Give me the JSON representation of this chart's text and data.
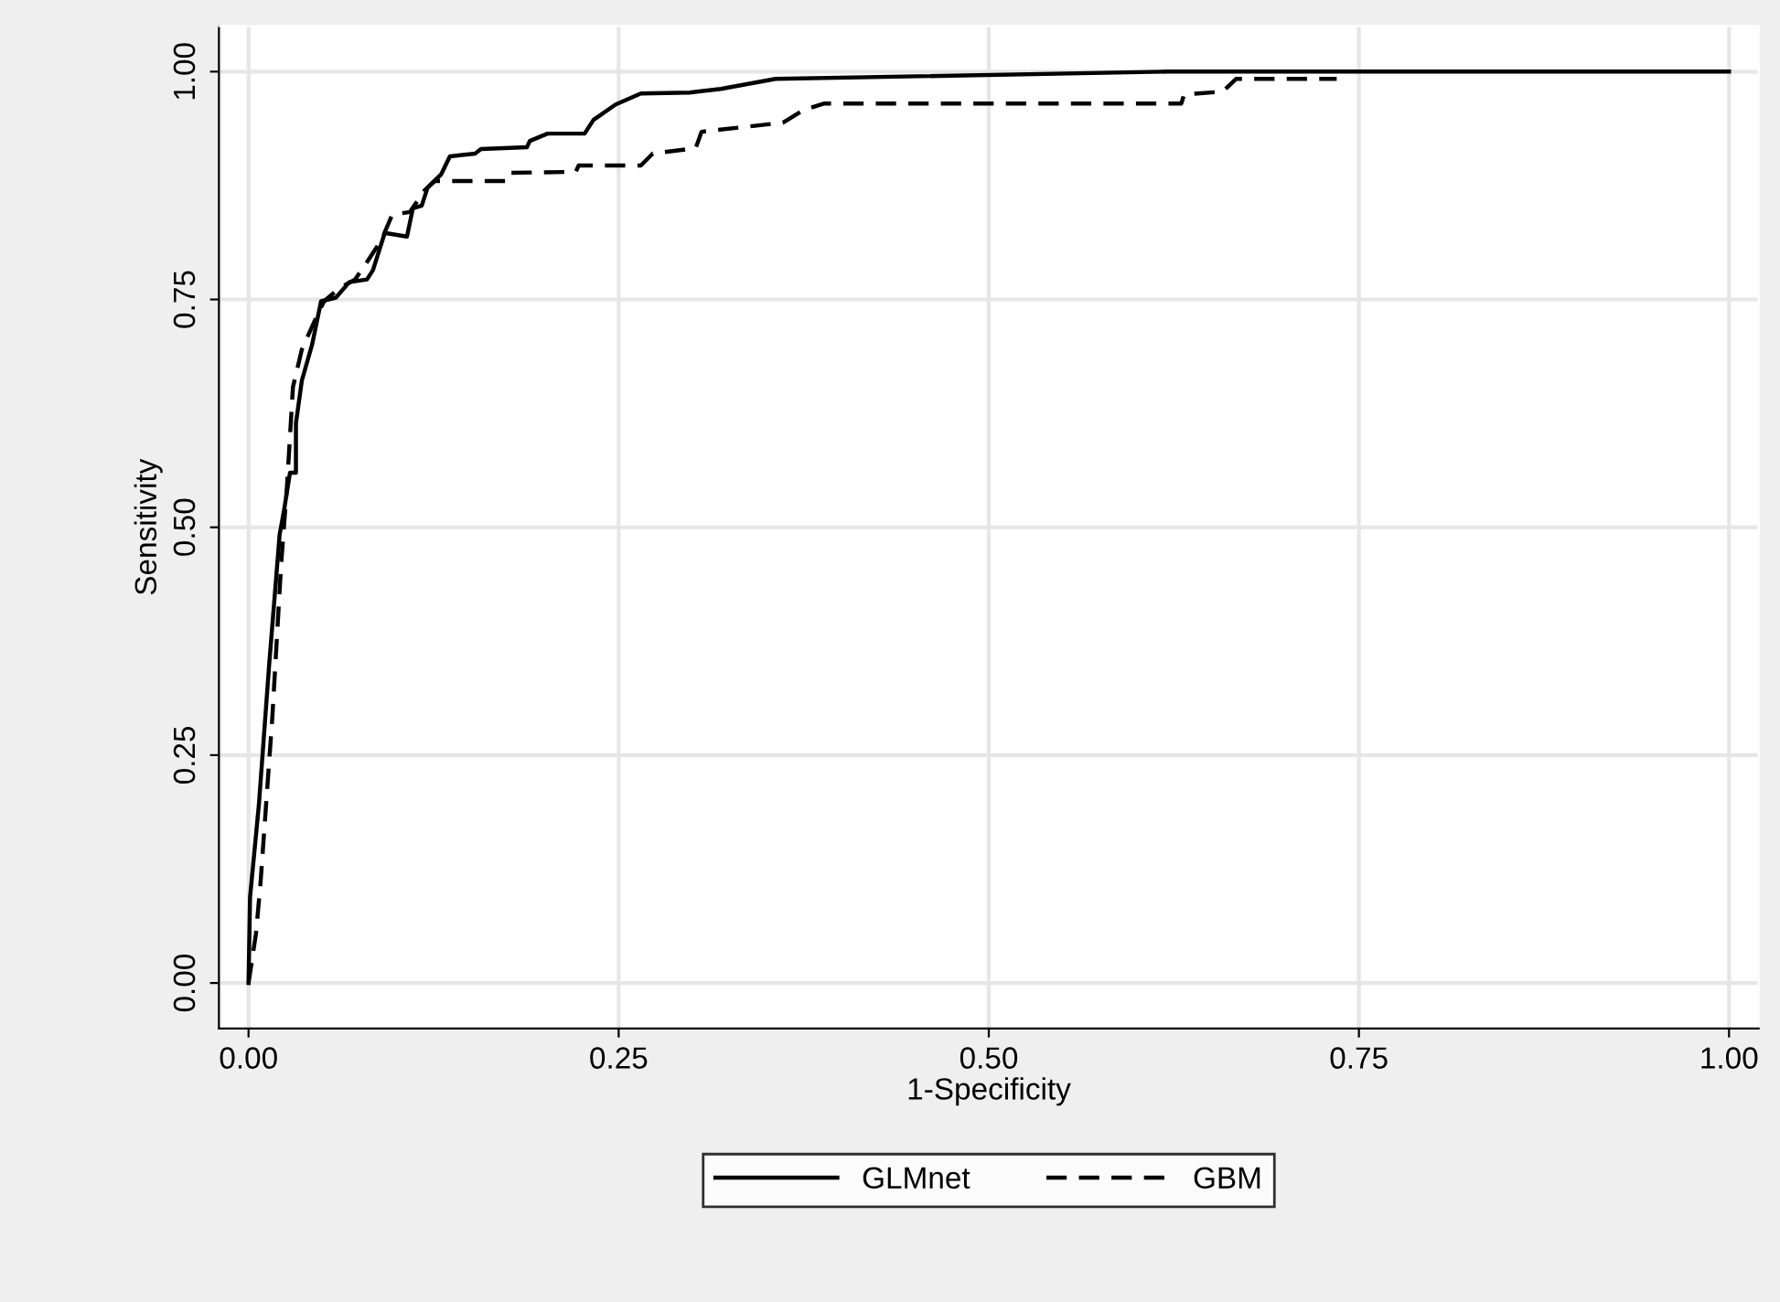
{
  "chart_data": {
    "type": "line",
    "xlabel": "1-Specificity",
    "ylabel": "Sensitivity",
    "xlim": [
      -0.02,
      1.02
    ],
    "ylim": [
      -0.05,
      1.05
    ],
    "xticks": [
      {
        "value": 0,
        "label": "0.00"
      },
      {
        "value": 0.25,
        "label": "0.25"
      },
      {
        "value": 0.5,
        "label": "0.50"
      },
      {
        "value": 0.75,
        "label": "0.75"
      },
      {
        "value": 1,
        "label": "1.00"
      }
    ],
    "yticks": [
      {
        "value": 0,
        "label": "0.00"
      },
      {
        "value": 0.25,
        "label": "0.25"
      },
      {
        "value": 0.5,
        "label": "0.50"
      },
      {
        "value": 0.75,
        "label": "0.75"
      },
      {
        "value": 1,
        "label": "1.00"
      }
    ],
    "grid": true,
    "legend": "bottom",
    "marker": "none",
    "series": [
      {
        "name": "GLMnet",
        "color": "#000000",
        "line_style": "solid",
        "x": [
          0,
          0.001,
          0.007,
          0.014,
          0.021,
          0.024,
          0.028,
          0.032,
          0.032,
          0.036,
          0.043,
          0.049,
          0.059,
          0.068,
          0.08,
          0.084,
          0.092,
          0.107,
          0.111,
          0.117,
          0.121,
          0.13,
          0.136,
          0.153,
          0.157,
          0.188,
          0.19,
          0.202,
          0.227,
          0.233,
          0.248,
          0.265,
          0.298,
          0.319,
          0.356,
          0.62,
          1.0
        ],
        "values": [
          0,
          0.094,
          0.196,
          0.351,
          0.492,
          0.519,
          0.56,
          0.56,
          0.614,
          0.661,
          0.701,
          0.748,
          0.752,
          0.769,
          0.772,
          0.782,
          0.823,
          0.819,
          0.85,
          0.853,
          0.873,
          0.887,
          0.907,
          0.91,
          0.915,
          0.917,
          0.924,
          0.932,
          0.932,
          0.947,
          0.964,
          0.976,
          0.977,
          0.981,
          0.992,
          1.0,
          1.0
        ]
      },
      {
        "name": "GBM",
        "color": "#000000",
        "line_style": "dashed",
        "x": [
          0,
          0.005,
          0.008,
          0.016,
          0.022,
          0.026,
          0.03,
          0.036,
          0.047,
          0.051,
          0.061,
          0.072,
          0.082,
          0.09,
          0.097,
          0.109,
          0.119,
          0.126,
          0.175,
          0.177,
          0.221,
          0.223,
          0.265,
          0.273,
          0.302,
          0.306,
          0.361,
          0.375,
          0.389,
          0.63,
          0.632,
          0.658,
          0.667,
          0.735
        ],
        "values": [
          0,
          0.054,
          0.108,
          0.29,
          0.459,
          0.546,
          0.654,
          0.695,
          0.735,
          0.748,
          0.762,
          0.772,
          0.796,
          0.816,
          0.843,
          0.846,
          0.87,
          0.88,
          0.88,
          0.889,
          0.89,
          0.897,
          0.897,
          0.91,
          0.916,
          0.934,
          0.944,
          0.958,
          0.965,
          0.965,
          0.975,
          0.978,
          0.992,
          0.992
        ]
      }
    ]
  }
}
